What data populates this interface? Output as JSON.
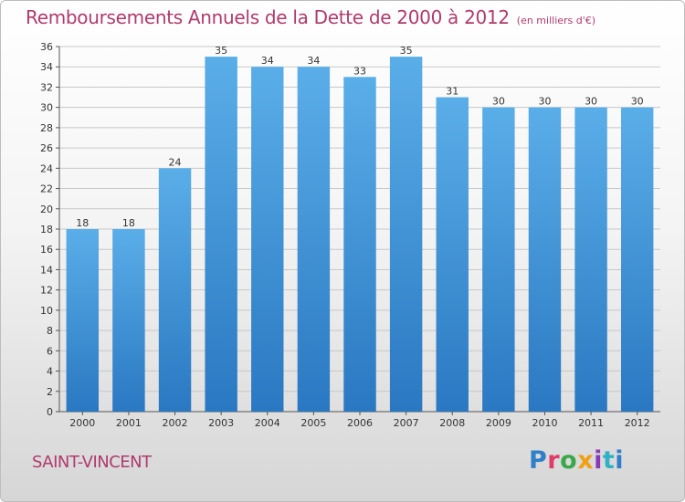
{
  "title": "Remboursements Annuels de la Dette de 2000 à 2012",
  "unit": "(en milliers d'€)",
  "commune": "SAINT-VINCENT",
  "logo_text": "Proxiti",
  "colors": {
    "bar_top": "#5aaee8",
    "bar_bottom": "#2a78c2",
    "title": "#b03a6e",
    "grid": "#c8c8c8"
  },
  "chart_data": {
    "type": "bar",
    "title": "Remboursements Annuels de la Dette de 2000 à 2012",
    "subtitle": "(en milliers d'€)",
    "xlabel": "",
    "ylabel": "",
    "categories": [
      "2000",
      "2001",
      "2002",
      "2003",
      "2004",
      "2005",
      "2006",
      "2007",
      "2008",
      "2009",
      "2010",
      "2011",
      "2012"
    ],
    "values": [
      18,
      18,
      24,
      35,
      34,
      34,
      33,
      35,
      31,
      30,
      30,
      30,
      30
    ],
    "ylim": [
      0,
      36
    ],
    "yticks": [
      0,
      2,
      4,
      6,
      8,
      10,
      12,
      14,
      16,
      18,
      20,
      22,
      24,
      26,
      28,
      30,
      32,
      34,
      36
    ],
    "grid": true,
    "legend": "none"
  }
}
